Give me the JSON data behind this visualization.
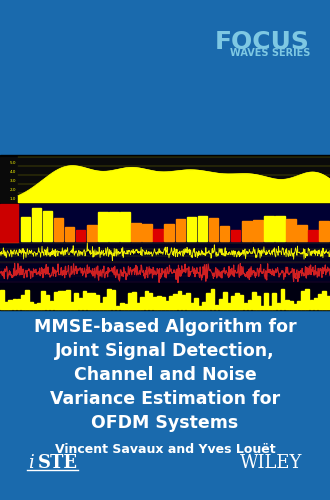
{
  "bg_color": "#1a6aad",
  "focus_text": "FOCUS",
  "waves_text": "WAVES SERIES",
  "focus_color": "#7ec8e3",
  "waves_color": "#7ec8e3",
  "title_line1": "MMSE-based Algorithm for",
  "title_line2": "Joint Signal Detection,",
  "title_line3": "Channel and Noise",
  "title_line4": "Variance Estimation for",
  "title_line5": "OFDM Systems",
  "title_color": "#ffffff",
  "author_text": "Vincent Savaux and Yves Louët",
  "author_color": "#ffffff",
  "wiley_text": "WILEY",
  "logo_color": "#ffffff",
  "chart_bg": "#000000",
  "yellow": "#ffff00",
  "red": "#dd0000",
  "orange": "#ff8800"
}
